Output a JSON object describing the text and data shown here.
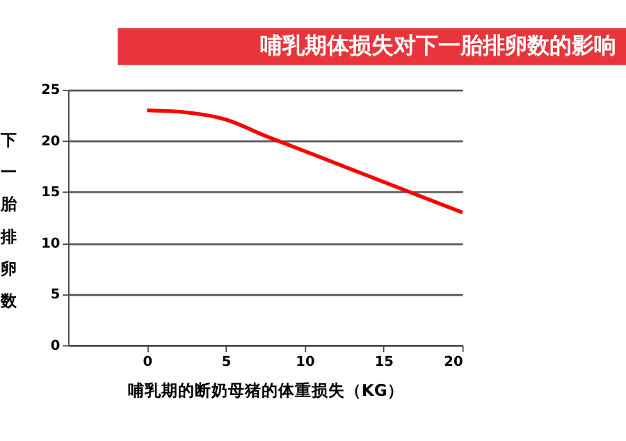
{
  "chart_data": {
    "type": "line",
    "title": "哺乳期体损失对下一胎排卵数的影响",
    "xlabel": "哺乳期的断奶母猪的体重损失（KG）",
    "ylabel": "下一胎排卵数",
    "x": [
      0,
      2.5,
      5,
      7.5,
      10,
      15,
      20
    ],
    "series": [
      {
        "color": "#ff0000",
        "values": [
          23,
          22.8,
          22.1,
          20.5,
          19,
          16,
          13
        ]
      }
    ],
    "xlim": [
      -5,
      20
    ],
    "xticks": [
      0,
      5,
      10,
      15,
      20
    ],
    "ylim": [
      0,
      25
    ],
    "yticks": [
      0,
      5,
      10,
      15,
      20,
      25
    ],
    "grid": "y",
    "marker": "none",
    "line_style": "solid"
  }
}
